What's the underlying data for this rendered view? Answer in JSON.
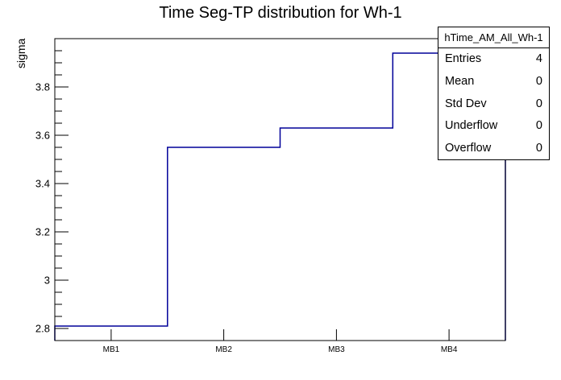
{
  "title": "Time Seg-TP distribution for Wh-1",
  "chart_data": {
    "type": "step-histogram",
    "title": "Time Seg-TP distribution for Wh-1",
    "histogram_name": "hTime_AM_All_Wh-1",
    "categories": [
      "MB1",
      "MB2",
      "MB3",
      "MB4"
    ],
    "values": [
      2.81,
      3.55,
      3.63,
      3.94
    ],
    "xlabel": "",
    "ylabel": "sigma",
    "ylim": [
      2.75,
      4.0
    ],
    "ytick_values": [
      2.8,
      3.0,
      3.2,
      3.4,
      3.6,
      3.8
    ],
    "ytick_labels": [
      "2.8",
      "3",
      "3.2",
      "3.4",
      "3.6",
      "3.8"
    ],
    "ytick_minor_step": 0.05,
    "grid": "off",
    "legend_position": "none",
    "line_color": "#000099",
    "frame_color": "#000000",
    "background_color": "#ffffff"
  },
  "stats_box": {
    "header": "hTime_AM_All_Wh-1",
    "rows": [
      {
        "label": "Entries",
        "value": "4"
      },
      {
        "label": "Mean",
        "value": "0"
      },
      {
        "label": "Std Dev",
        "value": "0"
      },
      {
        "label": "Underflow",
        "value": "0"
      },
      {
        "label": "Overflow",
        "value": "0"
      }
    ]
  }
}
